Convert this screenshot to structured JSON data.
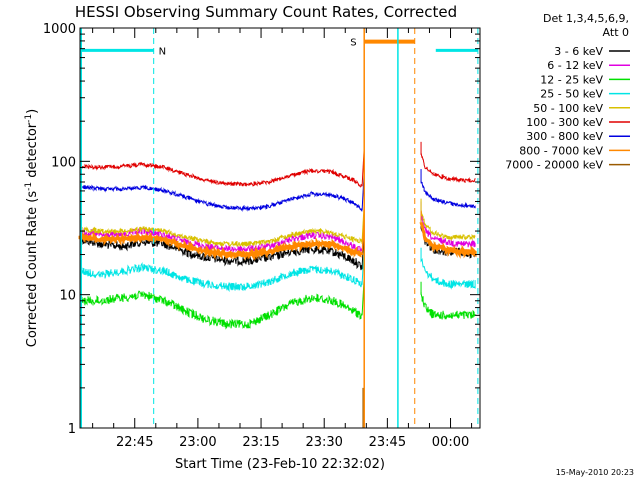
{
  "chart_data": {
    "type": "line",
    "title": "HESSI Observing Summary Count Rates, Corrected",
    "xlabel": "Start Time (23-Feb-10 22:32:02)",
    "ylabel_main": "Corrected Count Rate (s",
    "ylabel_exp1": "-1",
    "ylabel_mid": " detector",
    "ylabel_exp2": "-1",
    "ylabel_end": ")",
    "yscale": "log",
    "xlim_min": [
      0,
      95
    ],
    "ylim": [
      1,
      1000
    ],
    "x_ticks": [
      {
        "label": "22:45",
        "min": 13
      },
      {
        "label": "23:00",
        "min": 28
      },
      {
        "label": "23:15",
        "min": 43
      },
      {
        "label": "23:30",
        "min": 58
      },
      {
        "label": "23:45",
        "min": 73
      },
      {
        "label": "00:00",
        "min": 88
      }
    ],
    "y_ticks": [
      {
        "label": "1",
        "v": 1
      },
      {
        "label": "10",
        "v": 10
      },
      {
        "label": "100",
        "v": 100
      },
      {
        "label": "1000",
        "v": 1000
      }
    ],
    "legend_header": [
      "Det 1,3,4,5,6,9,",
      "Att 0"
    ],
    "footer_date": "15-May-2010 20:23",
    "flags": [
      {
        "label": "N",
        "start": 0,
        "end": 17.5,
        "level": 680,
        "color": "#00e5e5"
      },
      {
        "label": "S",
        "start": 67.5,
        "end": 79.5,
        "level": 790,
        "color": "#ff8800"
      }
    ],
    "flag_right": {
      "start": 84.5,
      "end": 94.5,
      "level": 680,
      "color": "#00e5e5"
    },
    "dashed_lines": [
      {
        "x": 17.5,
        "color": "#00e5e5"
      },
      {
        "x": 79.5,
        "color": "#ff8800"
      },
      {
        "x": 94.5,
        "color": "#00e5e5"
      }
    ],
    "solid_lines": [
      {
        "x": 67.5,
        "color": "#ff8800"
      },
      {
        "x": 75.5,
        "color": "#00e5e5"
      }
    ],
    "gap": [
      68,
      81
    ],
    "x_samples": [
      0,
      5,
      10,
      15,
      20,
      25,
      30,
      35,
      40,
      45,
      50,
      55,
      60,
      65,
      67
    ],
    "x_samples_post": [
      81,
      82,
      84,
      87,
      90,
      94
    ],
    "series": [
      {
        "name": "3 - 6 keV",
        "color": "#000000",
        "values": [
          26,
          24,
          23,
          25,
          24,
          21,
          19,
          18,
          18,
          19,
          21,
          22,
          21,
          18,
          16
        ],
        "post": [
          32,
          25,
          22,
          21,
          21,
          20
        ]
      },
      {
        "name": "6 - 12 keV",
        "color": "#e000e0",
        "values": [
          30,
          28,
          28,
          30,
          28,
          25,
          23,
          22,
          22,
          23,
          26,
          28,
          27,
          23,
          21
        ],
        "post": [
          40,
          30,
          26,
          25,
          24,
          24
        ]
      },
      {
        "name": "12 - 25 keV",
        "color": "#00e000",
        "values": [
          9,
          9,
          9.5,
          10,
          9,
          7.5,
          6.5,
          6,
          6,
          7,
          8.5,
          9.5,
          9,
          7.5,
          7
        ],
        "post": [
          10,
          8,
          7,
          7,
          7,
          7
        ]
      },
      {
        "name": "25 - 50 keV",
        "color": "#00e5e5",
        "values": [
          15,
          14,
          15,
          16,
          15,
          13,
          12,
          11.5,
          11.5,
          12.5,
          14.5,
          15.5,
          15,
          13,
          12
        ],
        "post": [
          18,
          15,
          13,
          12,
          12,
          12
        ]
      },
      {
        "name": "50 - 100 keV",
        "color": "#d8c000",
        "values": [
          31,
          30,
          30,
          31,
          30,
          27,
          25,
          24,
          24,
          25,
          28,
          30,
          29,
          26,
          25
        ],
        "post": [
          42,
          33,
          29,
          27,
          27,
          27
        ]
      },
      {
        "name": "100 - 300 keV",
        "color": "#e00000",
        "values": [
          92,
          90,
          92,
          95,
          90,
          80,
          72,
          68,
          67,
          70,
          78,
          85,
          83,
          72,
          65
        ],
        "post": [
          112,
          90,
          80,
          75,
          72,
          72
        ]
      },
      {
        "name": "300 - 800 keV",
        "color": "#0000e0",
        "values": [
          65,
          62,
          62,
          64,
          60,
          54,
          48,
          45,
          44,
          46,
          52,
          57,
          56,
          49,
          43
        ],
        "post": [
          70,
          58,
          52,
          49,
          47,
          46
        ]
      },
      {
        "name": "800 - 7000 keV",
        "color": "#ff8800",
        "values": [
          27,
          26,
          26,
          27,
          26,
          23,
          21,
          20,
          20,
          21,
          23,
          24,
          24,
          21,
          20
        ],
        "post": [
          34,
          26,
          23,
          22,
          21,
          21
        ]
      },
      {
        "name": "7000 - 20000 keV",
        "color": "#9a5a00",
        "values": [],
        "post": []
      }
    ]
  }
}
